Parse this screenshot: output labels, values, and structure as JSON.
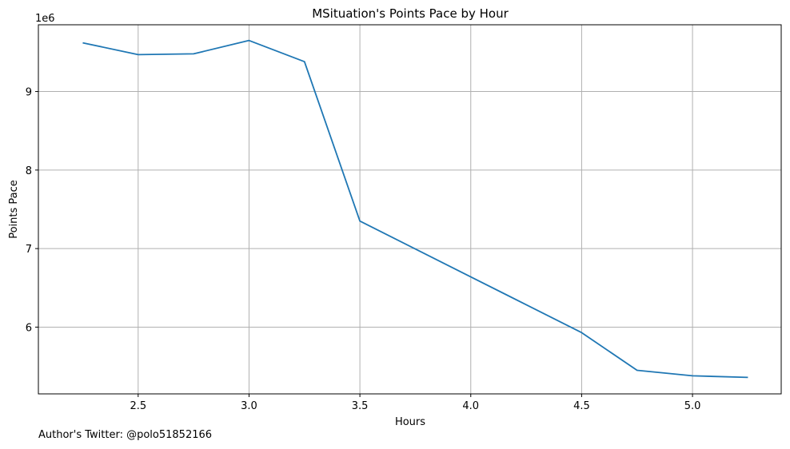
{
  "chart_data": {
    "type": "line",
    "title": "MSituation's Points Pace by Hour",
    "xlabel": "Hours",
    "ylabel": "Points Pace",
    "y_scale_note": "1e6",
    "x": [
      2.25,
      2.5,
      2.75,
      3.0,
      3.25,
      3.5,
      4.0,
      4.5,
      4.75,
      5.0,
      5.25
    ],
    "series": [
      {
        "values": [
          9620000,
          9470000,
          9480000,
          9650000,
          9380000,
          7350000,
          6640000,
          5930000,
          5450000,
          5380000,
          5360000
        ],
        "color": "#1f77b4"
      }
    ],
    "xlim": [
      2.05,
      5.4
    ],
    "ylim": [
      5.15,
      9.85
    ],
    "x_ticks": [
      {
        "value": 2.5,
        "label": "2.5"
      },
      {
        "value": 3.0,
        "label": "3.0"
      },
      {
        "value": 3.5,
        "label": "3.5"
      },
      {
        "value": 4.0,
        "label": "4.0"
      },
      {
        "value": 4.5,
        "label": "4.5"
      },
      {
        "value": 5.0,
        "label": "5.0"
      }
    ],
    "y_ticks": [
      {
        "value": 6,
        "label": "6"
      },
      {
        "value": 7,
        "label": "7"
      },
      {
        "value": 8,
        "label": "8"
      },
      {
        "value": 9,
        "label": "9"
      }
    ],
    "grid": true,
    "grid_color": "#b0b0b0"
  },
  "footer": {
    "author_text": "Author's Twitter: @polo51852166"
  }
}
